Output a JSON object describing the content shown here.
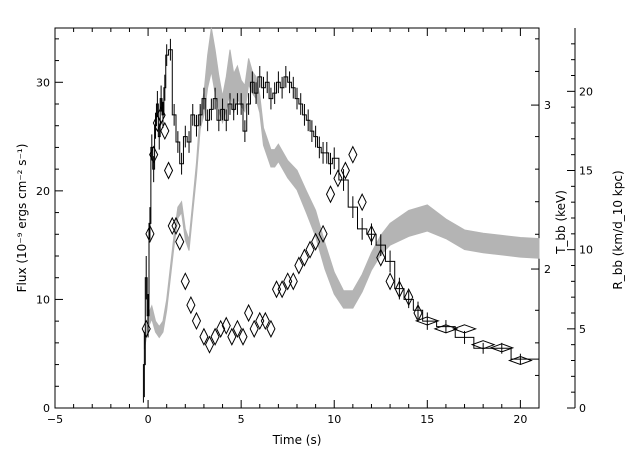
{
  "chart_data": {
    "type": "line",
    "xlabel": "Time (s)",
    "ylabel_left": "Flux (10⁻⁹ ergs cm⁻² s⁻¹)",
    "ylabel_right_inner": "T_bb (keV)",
    "ylabel_right_outer": "R_bb (km/d_10 kpc)",
    "xlim": [
      -5,
      21
    ],
    "ylim_flux": [
      0,
      35
    ],
    "ylim_rbb": [
      0,
      24
    ],
    "x_ticks": [
      -5,
      0,
      5,
      10,
      15,
      20
    ],
    "y_ticks_left": [
      0,
      10,
      20,
      30
    ],
    "y_ticks_right_outer": [
      0,
      5,
      10,
      15,
      20
    ],
    "y_ticks_right_inner": [
      {
        "label": "2",
        "flux_equiv": 12.8
      },
      {
        "label": "3",
        "flux_equiv": 27.9
      }
    ],
    "tick_labels_x": [
      "−5",
      "0",
      "5",
      "10",
      "15",
      "20"
    ],
    "tick_labels_left": [
      "0",
      "10",
      "20",
      "30"
    ],
    "tick_labels_right_outer": [
      "0",
      "5",
      "10",
      "15",
      "20"
    ],
    "series": [
      {
        "style": "black histogram with error bars",
        "quantity": "Flux",
        "x": [
          -0.2,
          -0.1,
          0.0,
          0.1,
          0.2,
          0.3,
          0.4,
          0.5,
          0.6,
          0.7,
          0.8,
          0.9,
          1.0,
          1.2,
          1.4,
          1.6,
          1.8,
          2.0,
          2.2,
          2.4,
          2.6,
          2.8,
          3.0,
          3.2,
          3.4,
          3.6,
          3.8,
          4.0,
          4.2,
          4.4,
          4.6,
          4.8,
          5.0,
          5.2,
          5.4,
          5.6,
          5.8,
          6.0,
          6.2,
          6.4,
          6.6,
          6.8,
          7.0,
          7.2,
          7.4,
          7.6,
          7.8,
          8.0,
          8.2,
          8.4,
          8.6,
          8.8,
          9.0,
          9.2,
          9.4,
          9.6,
          9.8,
          10.0,
          10.5,
          11.0,
          11.5,
          12.0,
          12.5,
          13.0,
          13.5,
          14.0,
          14.5,
          15.0,
          16.0,
          17.0,
          18.0,
          19.0,
          20.0
        ],
        "y": [
          4.0,
          12.0,
          8.5,
          17.0,
          24.0,
          22.0,
          26.0,
          28.0,
          25.0,
          28.5,
          27.0,
          29.5,
          32.5,
          33.0,
          27.0,
          24.5,
          22.5,
          25.0,
          24.5,
          27.0,
          26.0,
          27.0,
          28.5,
          26.5,
          27.5,
          28.5,
          26.5,
          27.5,
          26.5,
          28.0,
          27.5,
          28.0,
          28.0,
          25.5,
          28.0,
          30.0,
          29.0,
          30.5,
          29.5,
          30.0,
          28.5,
          29.0,
          30.0,
          29.5,
          30.5,
          30.0,
          29.5,
          28.5,
          28.0,
          27.0,
          26.5,
          25.5,
          25.0,
          24.0,
          23.5,
          23.5,
          22.5,
          23.0,
          21.0,
          18.5,
          16.5,
          16.0,
          15.0,
          13.5,
          11.0,
          10.0,
          9.0,
          8.0,
          7.5,
          6.5,
          5.5,
          5.5,
          4.5
        ],
        "err": [
          3.0,
          2.0,
          2.0,
          1.5,
          1.2,
          1.2,
          1.2,
          1.2,
          1.2,
          1.2,
          1.2,
          1.2,
          1.0,
          1.0,
          1.0,
          1.0,
          1.0,
          1.0,
          1.0,
          1.0,
          1.0,
          1.0,
          1.0,
          1.0,
          1.0,
          1.0,
          1.0,
          1.0,
          1.0,
          1.0,
          1.0,
          1.0,
          1.0,
          1.0,
          1.0,
          1.0,
          1.0,
          1.0,
          1.0,
          1.0,
          1.0,
          1.0,
          1.0,
          1.0,
          1.0,
          1.0,
          1.0,
          1.0,
          1.0,
          1.0,
          1.0,
          1.0,
          1.0,
          1.0,
          1.0,
          1.0,
          1.0,
          1.0,
          1.0,
          1.0,
          1.0,
          1.0,
          1.0,
          1.0,
          1.0,
          0.8,
          0.8,
          0.8,
          0.6,
          0.6,
          0.5,
          0.5,
          0.5
        ]
      },
      {
        "style": "open diamonds",
        "quantity": "R_bb",
        "x": [
          -0.1,
          0.1,
          0.3,
          0.5,
          0.7,
          0.9,
          1.1,
          1.3,
          1.5,
          1.7,
          2.0,
          2.3,
          2.6,
          3.0,
          3.3,
          3.6,
          3.9,
          4.2,
          4.5,
          4.8,
          5.1,
          5.4,
          5.7,
          6.0,
          6.3,
          6.6,
          6.9,
          7.2,
          7.5,
          7.8,
          8.1,
          8.4,
          8.7,
          9.0,
          9.4,
          9.8,
          10.2,
          10.6,
          11.0,
          11.5,
          12.0,
          12.5,
          13.0,
          13.5,
          14.0,
          14.5,
          15.0,
          16.0,
          17.0,
          18.0,
          19.0,
          20.0
        ],
        "y": [
          5.0,
          11.0,
          16.0,
          18.0,
          18.5,
          17.5,
          15.0,
          11.5,
          11.5,
          10.5,
          8.0,
          6.5,
          5.5,
          4.5,
          4.0,
          4.5,
          5.0,
          5.2,
          4.5,
          5.0,
          4.5,
          6.0,
          5.0,
          5.5,
          5.5,
          5.0,
          7.5,
          7.5,
          8.0,
          8.0,
          9.0,
          9.5,
          10.0,
          10.5,
          11.0,
          13.5,
          14.5,
          15.0,
          16.0,
          13.0,
          11.0,
          9.5,
          8.0,
          7.5,
          7.0,
          6.0,
          5.5,
          5.0,
          5.0,
          4.0,
          3.8,
          3.0
        ]
      },
      {
        "style": "gray band",
        "quantity": "T_bb",
        "x": [
          -0.2,
          0.0,
          0.2,
          0.4,
          0.6,
          0.8,
          1.0,
          1.2,
          1.4,
          1.6,
          1.8,
          2.0,
          2.2,
          2.4,
          2.6,
          2.8,
          3.0,
          3.2,
          3.4,
          3.6,
          3.8,
          4.0,
          4.2,
          4.4,
          4.6,
          4.8,
          5.0,
          5.2,
          5.4,
          5.6,
          5.8,
          6.0,
          6.2,
          6.4,
          6.6,
          6.8,
          7.0,
          7.5,
          8.0,
          8.5,
          9.0,
          9.5,
          10.0,
          10.5,
          11.0,
          11.5,
          12.0,
          12.5,
          13.0,
          14.0,
          15.0,
          16.0,
          17.0,
          18.0,
          19.0,
          20.0,
          21.0
        ],
        "y": [
          6.0,
          8.0,
          8.8,
          7.5,
          7.0,
          7.5,
          9.5,
          12.5,
          15.5,
          18.0,
          18.5,
          16.0,
          15.0,
          18.5,
          22.0,
          26.5,
          28.0,
          31.0,
          33.0,
          31.0,
          29.0,
          27.5,
          29.0,
          31.0,
          29.0,
          30.0,
          29.0,
          28.5,
          31.0,
          30.0,
          29.5,
          28.0,
          25.0,
          24.0,
          23.0,
          23.0,
          23.5,
          22.0,
          21.0,
          19.0,
          17.0,
          14.0,
          11.5,
          10.0,
          10.0,
          11.5,
          13.5,
          15.0,
          16.0,
          17.0,
          17.5,
          16.5,
          15.5,
          15.2,
          15.0,
          14.8,
          14.7
        ],
        "half_width": [
          0.6,
          0.6,
          0.6,
          0.5,
          0.5,
          0.5,
          0.5,
          0.5,
          0.5,
          0.5,
          0.5,
          0.5,
          0.5,
          0.5,
          0.6,
          0.8,
          1.0,
          1.5,
          2.0,
          2.0,
          1.6,
          1.2,
          1.5,
          2.0,
          1.8,
          1.5,
          1.2,
          1.2,
          1.2,
          1.0,
          1.0,
          0.8,
          0.8,
          0.8,
          0.8,
          0.8,
          0.8,
          0.8,
          0.9,
          1.0,
          1.2,
          1.2,
          1.0,
          0.8,
          0.8,
          0.8,
          0.8,
          0.9,
          1.0,
          1.2,
          1.2,
          0.9,
          0.9,
          0.9,
          0.9,
          0.9,
          0.9
        ]
      }
    ],
    "colors": {
      "histogram": "#000000",
      "diamonds": "#000000",
      "band": "#b4b4b4"
    }
  }
}
